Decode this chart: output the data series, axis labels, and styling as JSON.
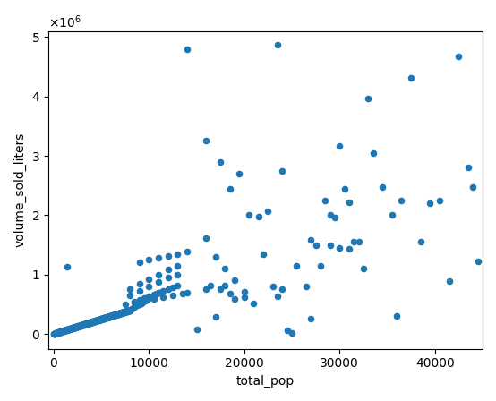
{
  "xlabel": "total_pop",
  "ylabel": "volume_sold_liters",
  "xlim": [
    -500,
    45000
  ],
  "ylim": [
    -250000,
    5100000
  ],
  "scatter_color": "#1f77b4",
  "marker_size": 20,
  "figsize": [
    5.54,
    4.48
  ],
  "dpi": 100,
  "points": [
    [
      30,
      1000
    ],
    [
      50,
      2000
    ],
    [
      80,
      3000
    ],
    [
      100,
      4000
    ],
    [
      120,
      5000
    ],
    [
      140,
      6000
    ],
    [
      160,
      7000
    ],
    [
      180,
      8000
    ],
    [
      200,
      9000
    ],
    [
      220,
      10000
    ],
    [
      240,
      11000
    ],
    [
      260,
      12000
    ],
    [
      280,
      13000
    ],
    [
      300,
      14000
    ],
    [
      320,
      15000
    ],
    [
      340,
      16000
    ],
    [
      360,
      17000
    ],
    [
      380,
      18000
    ],
    [
      400,
      19000
    ],
    [
      420,
      20000
    ],
    [
      440,
      21000
    ],
    [
      460,
      22000
    ],
    [
      480,
      23000
    ],
    [
      500,
      24000
    ],
    [
      520,
      25000
    ],
    [
      540,
      26000
    ],
    [
      560,
      27000
    ],
    [
      580,
      28000
    ],
    [
      600,
      29000
    ],
    [
      620,
      30000
    ],
    [
      640,
      31000
    ],
    [
      660,
      32000
    ],
    [
      680,
      33000
    ],
    [
      700,
      34000
    ],
    [
      720,
      35000
    ],
    [
      740,
      36000
    ],
    [
      760,
      37000
    ],
    [
      780,
      38000
    ],
    [
      800,
      39000
    ],
    [
      820,
      40000
    ],
    [
      840,
      41000
    ],
    [
      860,
      42000
    ],
    [
      880,
      43000
    ],
    [
      900,
      44000
    ],
    [
      920,
      45000
    ],
    [
      940,
      46000
    ],
    [
      960,
      47000
    ],
    [
      980,
      48000
    ],
    [
      1000,
      49000
    ],
    [
      1020,
      50000
    ],
    [
      1040,
      51000
    ],
    [
      1060,
      52000
    ],
    [
      1080,
      53000
    ],
    [
      1100,
      54000
    ],
    [
      1120,
      55000
    ],
    [
      1140,
      56000
    ],
    [
      1160,
      57000
    ],
    [
      1180,
      58000
    ],
    [
      1200,
      59000
    ],
    [
      1220,
      60000
    ],
    [
      1240,
      61000
    ],
    [
      1260,
      62000
    ],
    [
      1280,
      63000
    ],
    [
      1300,
      64000
    ],
    [
      1320,
      65000
    ],
    [
      1340,
      66000
    ],
    [
      1360,
      67000
    ],
    [
      1380,
      68000
    ],
    [
      1400,
      69000
    ],
    [
      1420,
      70000
    ],
    [
      1440,
      71000
    ],
    [
      1460,
      72000
    ],
    [
      1480,
      73000
    ],
    [
      1500,
      74000
    ],
    [
      1520,
      75000
    ],
    [
      1540,
      76000
    ],
    [
      1560,
      77000
    ],
    [
      1580,
      78000
    ],
    [
      1600,
      79000
    ],
    [
      1620,
      80000
    ],
    [
      1640,
      81000
    ],
    [
      1660,
      82000
    ],
    [
      1680,
      83000
    ],
    [
      1700,
      84000
    ],
    [
      1720,
      85000
    ],
    [
      1740,
      86000
    ],
    [
      1760,
      87000
    ],
    [
      1780,
      88000
    ],
    [
      1800,
      89000
    ],
    [
      1820,
      90000
    ],
    [
      1840,
      91000
    ],
    [
      1860,
      92000
    ],
    [
      1880,
      93000
    ],
    [
      1900,
      94000
    ],
    [
      1920,
      95000
    ],
    [
      1940,
      96000
    ],
    [
      1960,
      97000
    ],
    [
      1980,
      98000
    ],
    [
      2000,
      99000
    ],
    [
      2020,
      100000
    ],
    [
      2040,
      101000
    ],
    [
      2060,
      102000
    ],
    [
      2080,
      103000
    ],
    [
      2100,
      104000
    ],
    [
      2120,
      105000
    ],
    [
      2140,
      106000
    ],
    [
      2160,
      107000
    ],
    [
      2180,
      108000
    ],
    [
      2200,
      109000
    ],
    [
      2220,
      110000
    ],
    [
      2240,
      111000
    ],
    [
      2260,
      112000
    ],
    [
      2280,
      113000
    ],
    [
      2300,
      114000
    ],
    [
      2320,
      115000
    ],
    [
      2340,
      116000
    ],
    [
      2360,
      117000
    ],
    [
      2380,
      118000
    ],
    [
      2400,
      119000
    ],
    [
      2420,
      120000
    ],
    [
      2440,
      121000
    ],
    [
      2460,
      122000
    ],
    [
      2480,
      123000
    ],
    [
      2500,
      124000
    ],
    [
      2520,
      125000
    ],
    [
      2540,
      126000
    ],
    [
      2560,
      127000
    ],
    [
      2580,
      128000
    ],
    [
      2600,
      129000
    ],
    [
      2620,
      130000
    ],
    [
      2640,
      131000
    ],
    [
      2660,
      132000
    ],
    [
      2680,
      133000
    ],
    [
      2700,
      134000
    ],
    [
      2720,
      135000
    ],
    [
      2740,
      136000
    ],
    [
      2760,
      137000
    ],
    [
      2780,
      138000
    ],
    [
      2800,
      139000
    ],
    [
      2820,
      140000
    ],
    [
      2840,
      141000
    ],
    [
      2860,
      142000
    ],
    [
      2880,
      143000
    ],
    [
      2900,
      144000
    ],
    [
      2920,
      145000
    ],
    [
      2940,
      146000
    ],
    [
      2960,
      147000
    ],
    [
      2980,
      148000
    ],
    [
      3000,
      149000
    ],
    [
      3020,
      150000
    ],
    [
      3040,
      151000
    ],
    [
      3060,
      152000
    ],
    [
      3080,
      153000
    ],
    [
      3100,
      154000
    ],
    [
      3120,
      155000
    ],
    [
      3140,
      156000
    ],
    [
      3160,
      157000
    ],
    [
      3180,
      158000
    ],
    [
      3200,
      159000
    ],
    [
      3220,
      160000
    ],
    [
      3240,
      161000
    ],
    [
      3260,
      162000
    ],
    [
      3280,
      163000
    ],
    [
      3300,
      164000
    ],
    [
      3320,
      165000
    ],
    [
      3340,
      166000
    ],
    [
      3360,
      167000
    ],
    [
      3380,
      168000
    ],
    [
      3400,
      169000
    ],
    [
      3420,
      170000
    ],
    [
      3440,
      171000
    ],
    [
      3460,
      172000
    ],
    [
      3480,
      173000
    ],
    [
      3500,
      174000
    ],
    [
      3520,
      175000
    ],
    [
      3540,
      176000
    ],
    [
      3560,
      177000
    ],
    [
      3580,
      178000
    ],
    [
      3600,
      179000
    ],
    [
      3620,
      180000
    ],
    [
      3640,
      181000
    ],
    [
      3660,
      182000
    ],
    [
      3680,
      183000
    ],
    [
      3700,
      184000
    ],
    [
      3720,
      185000
    ],
    [
      3740,
      186000
    ],
    [
      3760,
      187000
    ],
    [
      3780,
      188000
    ],
    [
      3800,
      189000
    ],
    [
      3820,
      190000
    ],
    [
      3840,
      191000
    ],
    [
      3860,
      192000
    ],
    [
      3880,
      193000
    ],
    [
      3900,
      194000
    ],
    [
      3920,
      195000
    ],
    [
      3940,
      196000
    ],
    [
      3960,
      197000
    ],
    [
      3980,
      198000
    ],
    [
      4000,
      199000
    ],
    [
      4020,
      200000
    ],
    [
      4040,
      201000
    ],
    [
      4060,
      202000
    ],
    [
      4080,
      203000
    ],
    [
      4100,
      204000
    ],
    [
      4120,
      205000
    ],
    [
      4140,
      206000
    ],
    [
      4160,
      207000
    ],
    [
      4180,
      208000
    ],
    [
      4200,
      209000
    ],
    [
      4220,
      210000
    ],
    [
      4240,
      211000
    ],
    [
      4260,
      212000
    ],
    [
      4280,
      213000
    ],
    [
      4300,
      214000
    ],
    [
      4320,
      215000
    ],
    [
      4340,
      216000
    ],
    [
      4360,
      217000
    ],
    [
      4380,
      218000
    ],
    [
      4400,
      219000
    ],
    [
      4420,
      220000
    ],
    [
      4440,
      221000
    ],
    [
      4460,
      222000
    ],
    [
      4480,
      223000
    ],
    [
      4500,
      224000
    ],
    [
      4520,
      225000
    ],
    [
      4540,
      226000
    ],
    [
      4560,
      227000
    ],
    [
      4580,
      228000
    ],
    [
      4600,
      229000
    ],
    [
      4620,
      230000
    ],
    [
      4640,
      231000
    ],
    [
      4660,
      232000
    ],
    [
      4680,
      233000
    ],
    [
      4700,
      234000
    ],
    [
      4720,
      235000
    ],
    [
      4740,
      236000
    ],
    [
      4760,
      237000
    ],
    [
      4780,
      238000
    ],
    [
      4800,
      239000
    ],
    [
      4820,
      240000
    ],
    [
      4840,
      241000
    ],
    [
      4860,
      242000
    ],
    [
      4880,
      243000
    ],
    [
      4900,
      244000
    ],
    [
      4920,
      245000
    ],
    [
      4940,
      246000
    ],
    [
      4960,
      247000
    ],
    [
      4980,
      248000
    ],
    [
      5000,
      249000
    ],
    [
      5020,
      250000
    ],
    [
      5040,
      251000
    ],
    [
      5060,
      252000
    ],
    [
      5080,
      253000
    ],
    [
      5100,
      254000
    ],
    [
      5120,
      255000
    ],
    [
      5140,
      256000
    ],
    [
      5160,
      257000
    ],
    [
      5180,
      258000
    ],
    [
      5200,
      259000
    ],
    [
      5220,
      260000
    ],
    [
      5240,
      261000
    ],
    [
      5260,
      262000
    ],
    [
      5280,
      263000
    ],
    [
      5300,
      264000
    ],
    [
      5320,
      265000
    ],
    [
      5340,
      266000
    ],
    [
      5360,
      267000
    ],
    [
      5380,
      268000
    ],
    [
      5400,
      269000
    ],
    [
      5420,
      270000
    ],
    [
      5440,
      271000
    ],
    [
      5460,
      272000
    ],
    [
      5480,
      273000
    ],
    [
      5500,
      274000
    ],
    [
      5520,
      275000
    ],
    [
      5540,
      276000
    ],
    [
      5560,
      277000
    ],
    [
      5580,
      278000
    ],
    [
      5600,
      279000
    ],
    [
      5620,
      280000
    ],
    [
      5640,
      281000
    ],
    [
      5660,
      282000
    ],
    [
      5680,
      283000
    ],
    [
      5700,
      284000
    ],
    [
      5720,
      285000
    ],
    [
      5740,
      286000
    ],
    [
      5760,
      287000
    ],
    [
      5780,
      288000
    ],
    [
      5800,
      289000
    ],
    [
      5820,
      290000
    ],
    [
      5840,
      291000
    ],
    [
      5860,
      292000
    ],
    [
      5880,
      293000
    ],
    [
      5900,
      294000
    ],
    [
      5920,
      295000
    ],
    [
      5940,
      296000
    ],
    [
      5960,
      297000
    ],
    [
      5980,
      298000
    ],
    [
      6000,
      299000
    ],
    [
      6020,
      300000
    ],
    [
      6040,
      301000
    ],
    [
      6060,
      302000
    ],
    [
      6080,
      303000
    ],
    [
      6100,
      304000
    ],
    [
      6120,
      305000
    ],
    [
      6140,
      306000
    ],
    [
      6160,
      307000
    ],
    [
      6180,
      308000
    ],
    [
      6200,
      309000
    ],
    [
      6220,
      310000
    ],
    [
      6240,
      311000
    ],
    [
      6260,
      312000
    ],
    [
      6280,
      313000
    ],
    [
      6300,
      314000
    ],
    [
      6320,
      315000
    ],
    [
      6340,
      316000
    ],
    [
      6360,
      317000
    ],
    [
      6380,
      318000
    ],
    [
      6400,
      319000
    ],
    [
      6420,
      320000
    ],
    [
      6440,
      321000
    ],
    [
      6460,
      322000
    ],
    [
      6480,
      323000
    ],
    [
      6500,
      324000
    ],
    [
      6520,
      325000
    ],
    [
      6540,
      326000
    ],
    [
      6560,
      327000
    ],
    [
      6580,
      328000
    ],
    [
      6600,
      329000
    ],
    [
      6620,
      330000
    ],
    [
      6640,
      331000
    ],
    [
      6660,
      332000
    ],
    [
      6680,
      333000
    ],
    [
      6700,
      334000
    ],
    [
      6720,
      335000
    ],
    [
      6740,
      336000
    ],
    [
      6760,
      337000
    ],
    [
      6780,
      338000
    ],
    [
      6800,
      339000
    ],
    [
      6820,
      340000
    ],
    [
      6840,
      341000
    ],
    [
      6860,
      342000
    ],
    [
      6880,
      343000
    ],
    [
      6900,
      344000
    ],
    [
      6920,
      345000
    ],
    [
      6940,
      346000
    ],
    [
      6960,
      347000
    ],
    [
      6980,
      348000
    ],
    [
      7000,
      349000
    ],
    [
      7020,
      350000
    ],
    [
      7040,
      351000
    ],
    [
      7060,
      352000
    ],
    [
      7080,
      353000
    ],
    [
      7100,
      354000
    ],
    [
      7120,
      355000
    ],
    [
      7140,
      356000
    ],
    [
      7160,
      357000
    ],
    [
      7180,
      358000
    ],
    [
      7200,
      359000
    ],
    [
      7220,
      360000
    ],
    [
      7240,
      361000
    ],
    [
      7260,
      362000
    ],
    [
      7280,
      363000
    ],
    [
      7300,
      364000
    ],
    [
      7320,
      365000
    ],
    [
      7340,
      366000
    ],
    [
      7360,
      367000
    ],
    [
      7380,
      368000
    ],
    [
      7400,
      369000
    ],
    [
      7420,
      370000
    ],
    [
      7440,
      371000
    ],
    [
      7460,
      372000
    ],
    [
      7480,
      373000
    ],
    [
      7500,
      374000
    ],
    [
      7520,
      375000
    ],
    [
      7540,
      376000
    ],
    [
      7560,
      377000
    ],
    [
      7580,
      378000
    ],
    [
      7600,
      379000
    ],
    [
      7620,
      380000
    ],
    [
      7640,
      381000
    ],
    [
      7660,
      382000
    ],
    [
      7680,
      383000
    ],
    [
      7700,
      384000
    ],
    [
      7720,
      385000
    ],
    [
      7740,
      386000
    ],
    [
      7760,
      387000
    ],
    [
      7780,
      388000
    ],
    [
      7800,
      389000
    ],
    [
      7820,
      390000
    ],
    [
      7840,
      391000
    ],
    [
      7860,
      392000
    ],
    [
      7880,
      393000
    ],
    [
      7900,
      394000
    ],
    [
      7920,
      395000
    ],
    [
      7940,
      396000
    ],
    [
      7960,
      397000
    ],
    [
      7980,
      398000
    ],
    [
      8000,
      399000
    ],
    [
      1400,
      1130000
    ],
    [
      8200,
      420000
    ],
    [
      8400,
      440000
    ],
    [
      8600,
      460000
    ],
    [
      8800,
      480000
    ],
    [
      9000,
      500000
    ],
    [
      9200,
      520000
    ],
    [
      9400,
      540000
    ],
    [
      9600,
      560000
    ],
    [
      9800,
      580000
    ],
    [
      10000,
      600000
    ],
    [
      10200,
      620000
    ],
    [
      10400,
      640000
    ],
    [
      10600,
      660000
    ],
    [
      10800,
      680000
    ],
    [
      11000,
      700000
    ],
    [
      8500,
      550000
    ],
    [
      9000,
      580000
    ],
    [
      9500,
      610000
    ],
    [
      10000,
      640000
    ],
    [
      10500,
      670000
    ],
    [
      11000,
      700000
    ],
    [
      11500,
      730000
    ],
    [
      12000,
      760000
    ],
    [
      12500,
      790000
    ],
    [
      13000,
      820000
    ],
    [
      8000,
      650000
    ],
    [
      9000,
      720000
    ],
    [
      10000,
      800000
    ],
    [
      11000,
      870000
    ],
    [
      12000,
      950000
    ],
    [
      13000,
      1000000
    ],
    [
      8000,
      760000
    ],
    [
      9000,
      840000
    ],
    [
      10000,
      920000
    ],
    [
      11000,
      1000000
    ],
    [
      12000,
      1080000
    ],
    [
      13000,
      1150000
    ],
    [
      7500,
      500000
    ],
    [
      8500,
      530000
    ],
    [
      9500,
      560000
    ],
    [
      10500,
      590000
    ],
    [
      11500,
      620000
    ],
    [
      12500,
      650000
    ],
    [
      13500,
      680000
    ],
    [
      14000,
      700000
    ],
    [
      9000,
      1200000
    ],
    [
      10000,
      1250000
    ],
    [
      11000,
      1280000
    ],
    [
      12000,
      1310000
    ],
    [
      13000,
      1340000
    ],
    [
      14000,
      1380000
    ],
    [
      14000,
      4800000
    ],
    [
      15000,
      80000
    ],
    [
      16000,
      750000
    ],
    [
      16500,
      810000
    ],
    [
      17000,
      290000
    ],
    [
      17500,
      750000
    ],
    [
      18000,
      820000
    ],
    [
      18500,
      680000
    ],
    [
      19000,
      590000
    ],
    [
      20000,
      620000
    ],
    [
      21000,
      520000
    ],
    [
      16000,
      1620000
    ],
    [
      17000,
      1300000
    ],
    [
      18000,
      1100000
    ],
    [
      19000,
      900000
    ],
    [
      20000,
      710000
    ],
    [
      16000,
      3260000
    ],
    [
      17500,
      2900000
    ],
    [
      18500,
      2450000
    ],
    [
      19500,
      2700000
    ],
    [
      20500,
      2010000
    ],
    [
      21500,
      1980000
    ],
    [
      22500,
      2060000
    ],
    [
      23500,
      4870000
    ],
    [
      22000,
      1340000
    ],
    [
      23000,
      800000
    ],
    [
      24000,
      750000
    ],
    [
      23500,
      630000
    ],
    [
      24500,
      60000
    ],
    [
      25000,
      20000
    ],
    [
      24000,
      2750000
    ],
    [
      25500,
      1150000
    ],
    [
      26500,
      800000
    ],
    [
      27000,
      1590000
    ],
    [
      27500,
      1490000
    ],
    [
      28000,
      1150000
    ],
    [
      28500,
      2240000
    ],
    [
      29000,
      2010000
    ],
    [
      29500,
      1960000
    ],
    [
      30000,
      3160000
    ],
    [
      30500,
      2450000
    ],
    [
      31000,
      2210000
    ],
    [
      31500,
      1560000
    ],
    [
      32000,
      1550000
    ],
    [
      32500,
      1100000
    ],
    [
      33000,
      3960000
    ],
    [
      27000,
      260000
    ],
    [
      29000,
      1500000
    ],
    [
      30000,
      1440000
    ],
    [
      31000,
      1430000
    ],
    [
      33500,
      3040000
    ],
    [
      34500,
      2480000
    ],
    [
      35500,
      2000000
    ],
    [
      36500,
      2240000
    ],
    [
      37500,
      4310000
    ],
    [
      38500,
      1550000
    ],
    [
      39500,
      2200000
    ],
    [
      40500,
      2250000
    ],
    [
      41500,
      890000
    ],
    [
      42500,
      4670000
    ],
    [
      43500,
      2810000
    ],
    [
      44000,
      2480000
    ],
    [
      44500,
      1220000
    ],
    [
      36000,
      300000
    ]
  ]
}
